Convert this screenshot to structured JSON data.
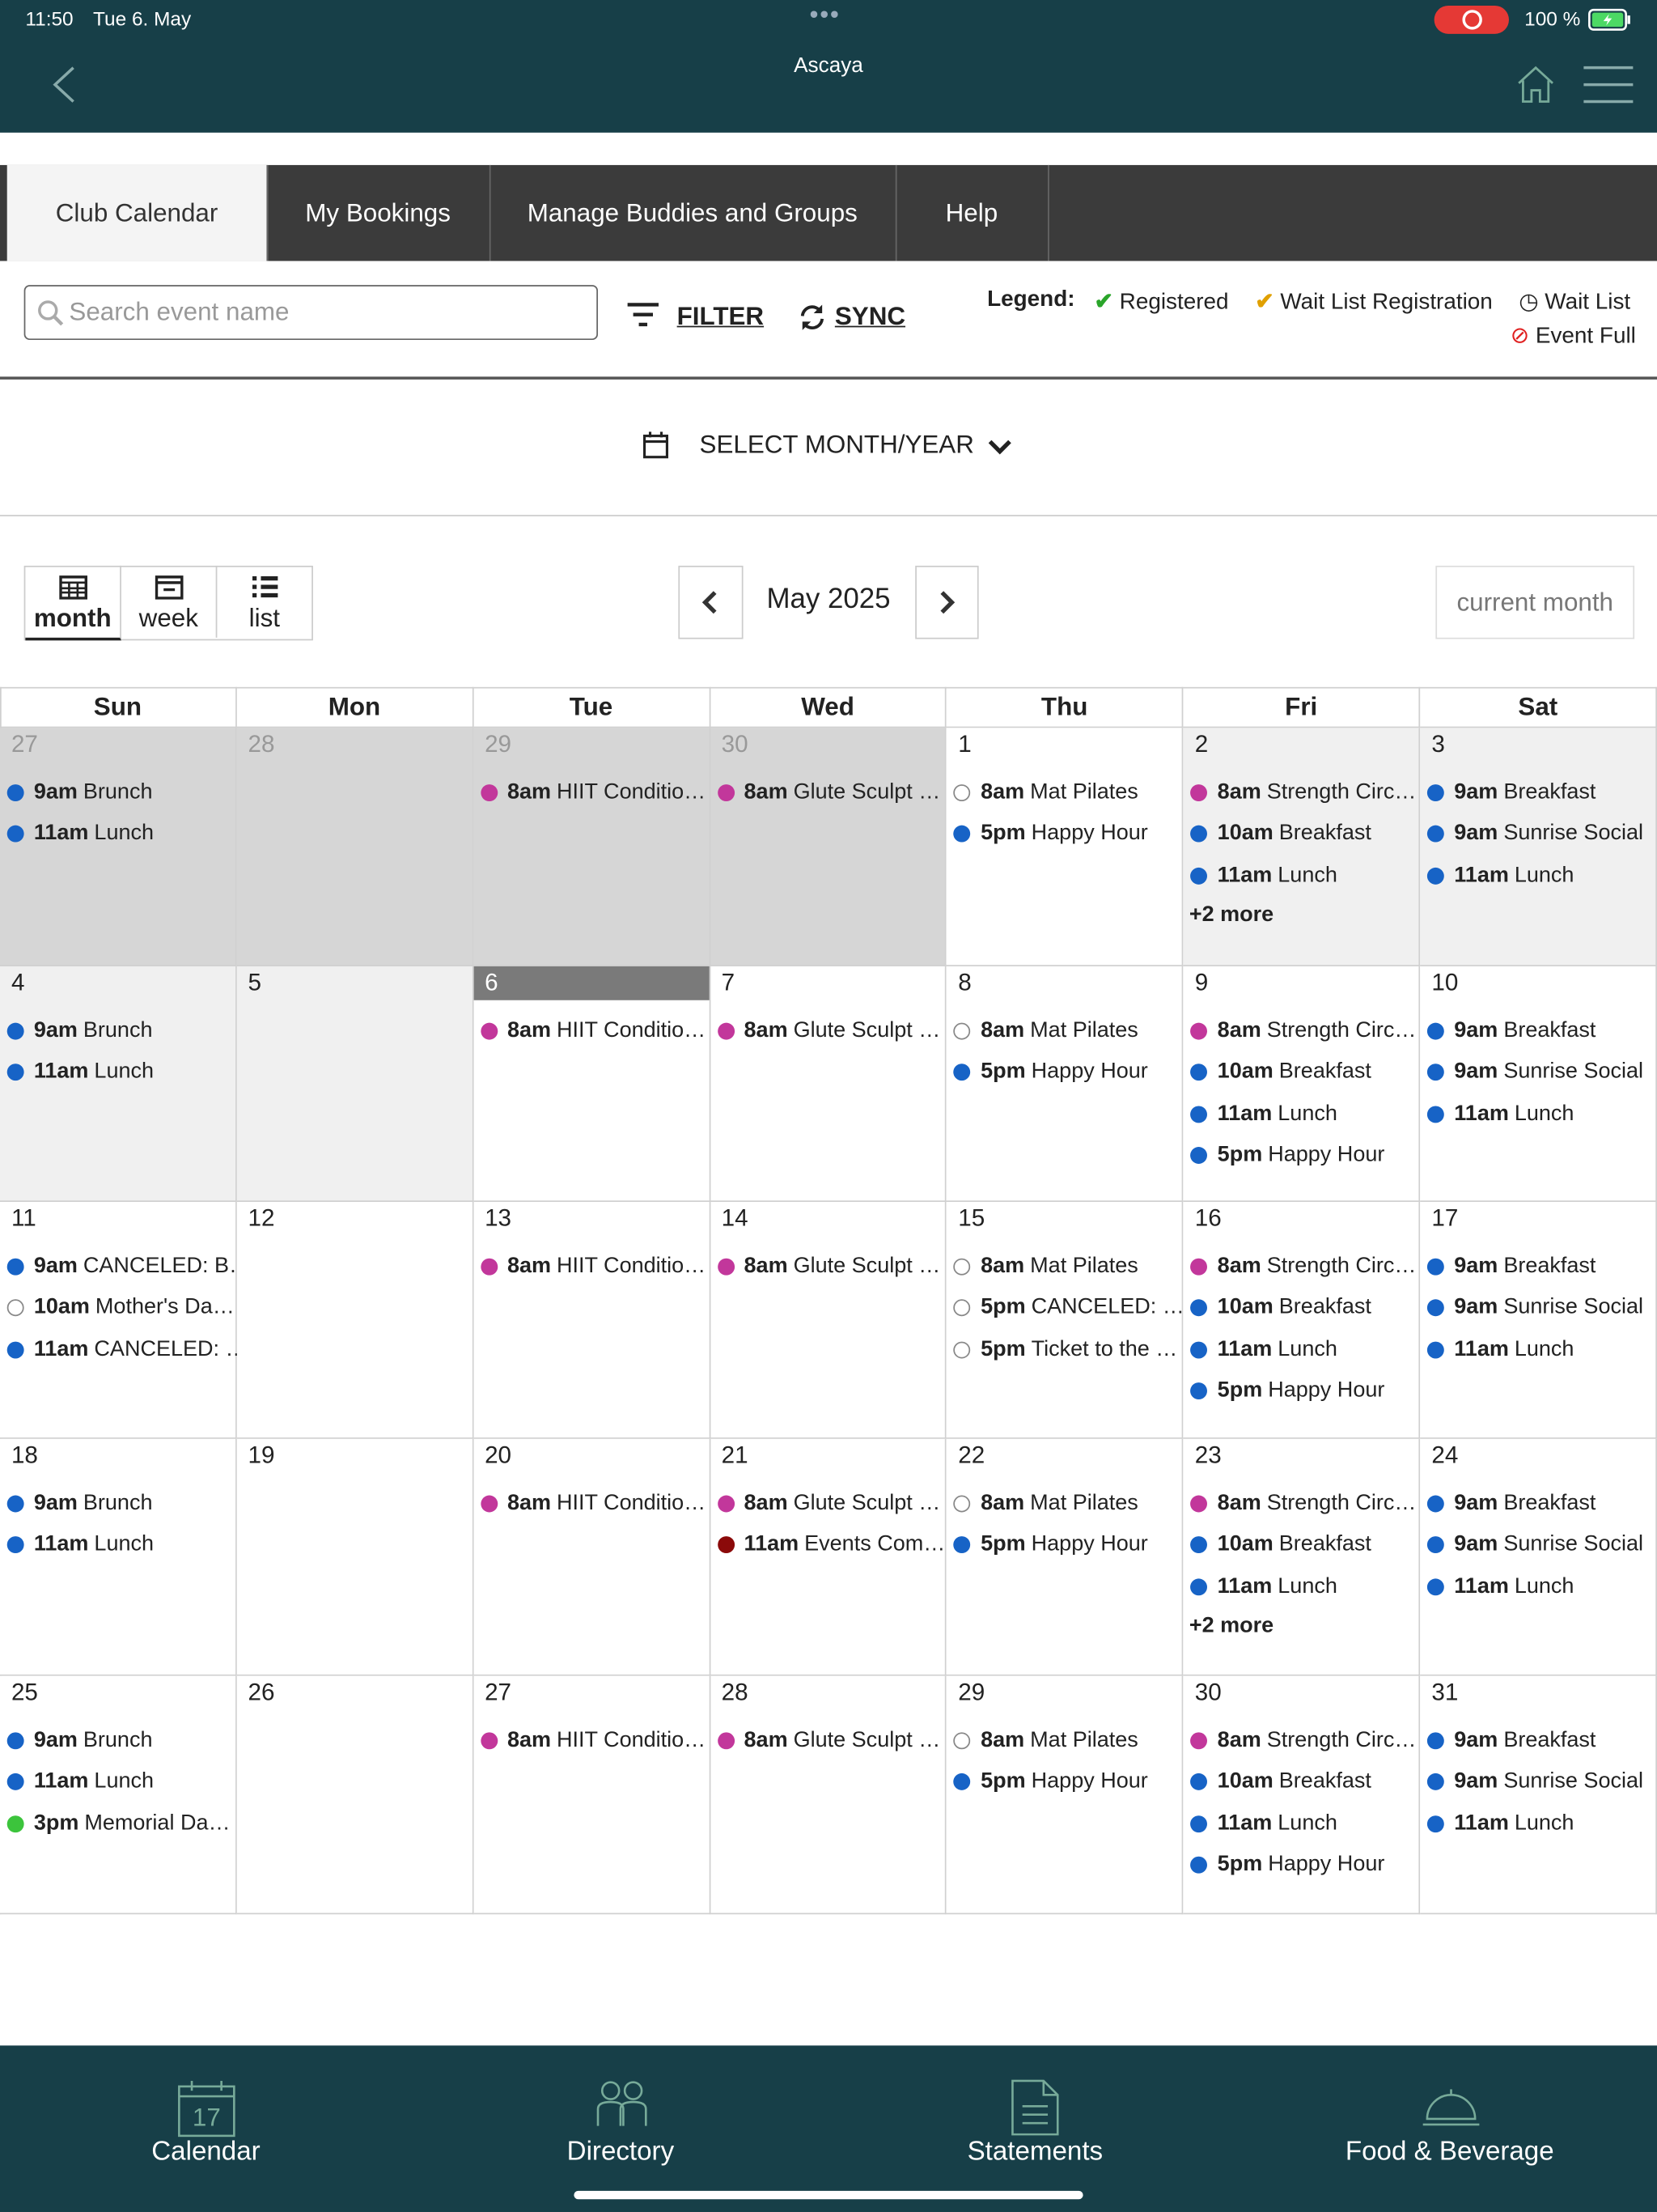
{
  "status_bar": {
    "time": "11:50",
    "date": "Tue 6. May",
    "battery": "100 %"
  },
  "header": {
    "title": "Ascaya"
  },
  "tabs": [
    "Club Calendar",
    "My Bookings",
    "Manage Buddies and Groups",
    "Help"
  ],
  "toolbar": {
    "search_placeholder": "Search event name",
    "filter": "FILTER",
    "sync": "SYNC"
  },
  "legend": {
    "title": "Legend:",
    "items": [
      "Registered",
      "Wait List Registration",
      "Wait List",
      "Event Full"
    ]
  },
  "month_select": "SELECT MONTH/YEAR",
  "views": [
    "month",
    "week",
    "list"
  ],
  "month_label": "May 2025",
  "current_month": "current month",
  "weekdays": [
    "Sun",
    "Mon",
    "Tue",
    "Wed",
    "Thu",
    "Fri",
    "Sat"
  ],
  "weeks": [
    [
      {
        "day": 27,
        "shade": "out",
        "events": [
          {
            "time": "9am",
            "name": "Brunch",
            "color": "#1763c6"
          },
          {
            "time": "11am",
            "name": "Lunch",
            "color": "#1763c6"
          }
        ]
      },
      {
        "day": 28,
        "shade": "out",
        "events": []
      },
      {
        "day": 29,
        "shade": "out",
        "events": [
          {
            "time": "8am",
            "name": "HIIT Conditio…",
            "color": "#c2379b"
          }
        ]
      },
      {
        "day": 30,
        "shade": "out",
        "events": [
          {
            "time": "8am",
            "name": "Glute Sculpt …",
            "color": "#c2379b"
          }
        ]
      },
      {
        "day": 1,
        "events": [
          {
            "time": "8am",
            "name": "Mat Pilates",
            "color": "#ffffff"
          },
          {
            "time": "5pm",
            "name": "Happy Hour",
            "color": "#1763c6"
          }
        ]
      },
      {
        "day": 2,
        "shade": "past",
        "events": [
          {
            "time": "8am",
            "name": "Strength Circ…",
            "color": "#c2379b"
          },
          {
            "time": "10am",
            "name": "Breakfast",
            "color": "#1763c6"
          },
          {
            "time": "11am",
            "name": "Lunch",
            "color": "#1763c6"
          }
        ],
        "more": "+2 more"
      },
      {
        "day": 3,
        "shade": "past",
        "events": [
          {
            "time": "9am",
            "name": "Breakfast",
            "color": "#1763c6"
          },
          {
            "time": "9am",
            "name": "Sunrise Social",
            "color": "#1763c6"
          },
          {
            "time": "11am",
            "name": "Lunch",
            "color": "#1763c6"
          }
        ]
      }
    ],
    [
      {
        "day": 4,
        "shade": "past",
        "events": [
          {
            "time": "9am",
            "name": "Brunch",
            "color": "#1763c6"
          },
          {
            "time": "11am",
            "name": "Lunch",
            "color": "#1763c6"
          }
        ]
      },
      {
        "day": 5,
        "shade": "past",
        "events": []
      },
      {
        "day": 6,
        "shade": "today",
        "events": [
          {
            "time": "8am",
            "name": "HIIT Conditio…",
            "color": "#c2379b"
          }
        ]
      },
      {
        "day": 7,
        "events": [
          {
            "time": "8am",
            "name": "Glute Sculpt …",
            "color": "#c2379b"
          }
        ]
      },
      {
        "day": 8,
        "events": [
          {
            "time": "8am",
            "name": "Mat Pilates",
            "color": "#ffffff"
          },
          {
            "time": "5pm",
            "name": "Happy Hour",
            "color": "#1763c6"
          }
        ]
      },
      {
        "day": 9,
        "events": [
          {
            "time": "8am",
            "name": "Strength Circ…",
            "color": "#c2379b"
          },
          {
            "time": "10am",
            "name": "Breakfast",
            "color": "#1763c6"
          },
          {
            "time": "11am",
            "name": "Lunch",
            "color": "#1763c6"
          },
          {
            "time": "5pm",
            "name": "Happy Hour",
            "color": "#1763c6"
          }
        ]
      },
      {
        "day": 10,
        "events": [
          {
            "time": "9am",
            "name": "Breakfast",
            "color": "#1763c6"
          },
          {
            "time": "9am",
            "name": "Sunrise Social",
            "color": "#1763c6"
          },
          {
            "time": "11am",
            "name": "Lunch",
            "color": "#1763c6"
          }
        ]
      }
    ],
    [
      {
        "day": 11,
        "events": [
          {
            "time": "9am",
            "name": "CANCELED: B…",
            "color": "#1763c6"
          },
          {
            "time": "10am",
            "name": "Mother's Da…",
            "color": "#ffffff"
          },
          {
            "time": "11am",
            "name": "CANCELED: …",
            "color": "#1763c6"
          }
        ]
      },
      {
        "day": 12,
        "events": []
      },
      {
        "day": 13,
        "events": [
          {
            "time": "8am",
            "name": "HIIT Conditio…",
            "color": "#c2379b"
          }
        ]
      },
      {
        "day": 14,
        "events": [
          {
            "time": "8am",
            "name": "Glute Sculpt …",
            "color": "#c2379b"
          }
        ]
      },
      {
        "day": 15,
        "events": [
          {
            "time": "8am",
            "name": "Mat Pilates",
            "color": "#ffffff"
          },
          {
            "time": "5pm",
            "name": "CANCELED: …",
            "color": "#ffffff"
          },
          {
            "time": "5pm",
            "name": "Ticket to the …",
            "color": "#ffffff"
          }
        ]
      },
      {
        "day": 16,
        "events": [
          {
            "time": "8am",
            "name": "Strength Circ…",
            "color": "#c2379b"
          },
          {
            "time": "10am",
            "name": "Breakfast",
            "color": "#1763c6"
          },
          {
            "time": "11am",
            "name": "Lunch",
            "color": "#1763c6"
          },
          {
            "time": "5pm",
            "name": "Happy Hour",
            "color": "#1763c6"
          }
        ]
      },
      {
        "day": 17,
        "events": [
          {
            "time": "9am",
            "name": "Breakfast",
            "color": "#1763c6"
          },
          {
            "time": "9am",
            "name": "Sunrise Social",
            "color": "#1763c6"
          },
          {
            "time": "11am",
            "name": "Lunch",
            "color": "#1763c6"
          }
        ]
      }
    ],
    [
      {
        "day": 18,
        "events": [
          {
            "time": "9am",
            "name": "Brunch",
            "color": "#1763c6"
          },
          {
            "time": "11am",
            "name": "Lunch",
            "color": "#1763c6"
          }
        ]
      },
      {
        "day": 19,
        "events": []
      },
      {
        "day": 20,
        "events": [
          {
            "time": "8am",
            "name": "HIIT Conditio…",
            "color": "#c2379b"
          }
        ]
      },
      {
        "day": 21,
        "events": [
          {
            "time": "8am",
            "name": "Glute Sculpt …",
            "color": "#c2379b"
          },
          {
            "time": "11am",
            "name": "Events Com…",
            "color": "#8b0a0a"
          }
        ]
      },
      {
        "day": 22,
        "events": [
          {
            "time": "8am",
            "name": "Mat Pilates",
            "color": "#ffffff"
          },
          {
            "time": "5pm",
            "name": "Happy Hour",
            "color": "#1763c6"
          }
        ]
      },
      {
        "day": 23,
        "events": [
          {
            "time": "8am",
            "name": "Strength Circ…",
            "color": "#c2379b"
          },
          {
            "time": "10am",
            "name": "Breakfast",
            "color": "#1763c6"
          },
          {
            "time": "11am",
            "name": "Lunch",
            "color": "#1763c6"
          }
        ],
        "more": "+2 more"
      },
      {
        "day": 24,
        "events": [
          {
            "time": "9am",
            "name": "Breakfast",
            "color": "#1763c6"
          },
          {
            "time": "9am",
            "name": "Sunrise Social",
            "color": "#1763c6"
          },
          {
            "time": "11am",
            "name": "Lunch",
            "color": "#1763c6"
          }
        ]
      }
    ],
    [
      {
        "day": 25,
        "events": [
          {
            "time": "9am",
            "name": "Brunch",
            "color": "#1763c6"
          },
          {
            "time": "11am",
            "name": "Lunch",
            "color": "#1763c6"
          },
          {
            "time": "3pm",
            "name": "Memorial Da…",
            "color": "#3cc43c"
          }
        ]
      },
      {
        "day": 26,
        "events": []
      },
      {
        "day": 27,
        "events": [
          {
            "time": "8am",
            "name": "HIIT Conditio…",
            "color": "#c2379b"
          }
        ]
      },
      {
        "day": 28,
        "events": [
          {
            "time": "8am",
            "name": "Glute Sculpt …",
            "color": "#c2379b"
          }
        ]
      },
      {
        "day": 29,
        "events": [
          {
            "time": "8am",
            "name": "Mat Pilates",
            "color": "#ffffff"
          },
          {
            "time": "5pm",
            "name": "Happy Hour",
            "color": "#1763c6"
          }
        ]
      },
      {
        "day": 30,
        "events": [
          {
            "time": "8am",
            "name": "Strength Circ…",
            "color": "#c2379b"
          },
          {
            "time": "10am",
            "name": "Breakfast",
            "color": "#1763c6"
          },
          {
            "time": "11am",
            "name": "Lunch",
            "color": "#1763c6"
          },
          {
            "time": "5pm",
            "name": "Happy Hour",
            "color": "#1763c6"
          }
        ]
      },
      {
        "day": 31,
        "events": [
          {
            "time": "9am",
            "name": "Breakfast",
            "color": "#1763c6"
          },
          {
            "time": "9am",
            "name": "Sunrise Social",
            "color": "#1763c6"
          },
          {
            "time": "11am",
            "name": "Lunch",
            "color": "#1763c6"
          }
        ]
      }
    ]
  ],
  "bottom_nav": {
    "calendar_icon_day": "17",
    "items": [
      "Calendar",
      "Directory",
      "Statements",
      "Food & Beverage"
    ]
  }
}
